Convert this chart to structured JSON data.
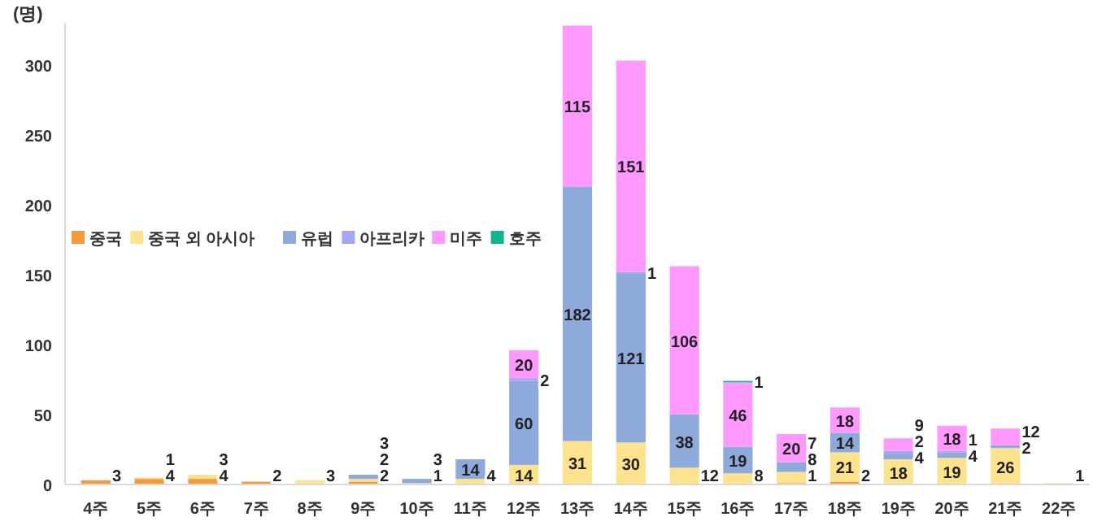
{
  "chart_data": {
    "type": "bar",
    "stacked": true,
    "ylabel": "(명)",
    "categories": [
      "4주",
      "5주",
      "6주",
      "7주",
      "8주",
      "9주",
      "10주",
      "11주",
      "12주",
      "13주",
      "14주",
      "15주",
      "16주",
      "17주",
      "18주",
      "19주",
      "20주",
      "21주",
      "22주"
    ],
    "series": [
      {
        "name": "중국",
        "color": "#f39a3c",
        "values": [
          3,
          4,
          4,
          2,
          null,
          2,
          null,
          null,
          null,
          null,
          null,
          null,
          null,
          1,
          2,
          null,
          null,
          null,
          null
        ]
      },
      {
        "name": "중국 외 아시아",
        "color": "#fde38e",
        "values": [
          null,
          1,
          3,
          null,
          3,
          2,
          1,
          4,
          14,
          31,
          30,
          12,
          8,
          8,
          21,
          18,
          19,
          26,
          1
        ]
      },
      {
        "name": "유럽",
        "color": "#8eaadb",
        "values": [
          null,
          null,
          null,
          null,
          null,
          3,
          3,
          14,
          60,
          182,
          121,
          38,
          19,
          7,
          14,
          4,
          4,
          2,
          null
        ]
      },
      {
        "name": "아프리카",
        "color": "#a5a5f5",
        "values": [
          null,
          null,
          null,
          null,
          null,
          null,
          null,
          null,
          2,
          null,
          1,
          null,
          null,
          null,
          null,
          2,
          1,
          null,
          null
        ]
      },
      {
        "name": "미주",
        "color": "#ff99ff",
        "values": [
          null,
          null,
          null,
          null,
          null,
          null,
          null,
          null,
          20,
          115,
          151,
          106,
          46,
          20,
          18,
          9,
          18,
          12,
          null
        ]
      },
      {
        "name": "호주",
        "color": "#12b58c",
        "values": [
          null,
          null,
          null,
          null,
          null,
          null,
          null,
          null,
          null,
          null,
          null,
          null,
          1,
          null,
          null,
          null,
          null,
          null,
          null
        ]
      }
    ],
    "ylim": [
      0,
      330
    ],
    "yticks": [
      0,
      50,
      100,
      150,
      200,
      250,
      300
    ],
    "grid": false,
    "legend": "left",
    "data_labels": true
  }
}
